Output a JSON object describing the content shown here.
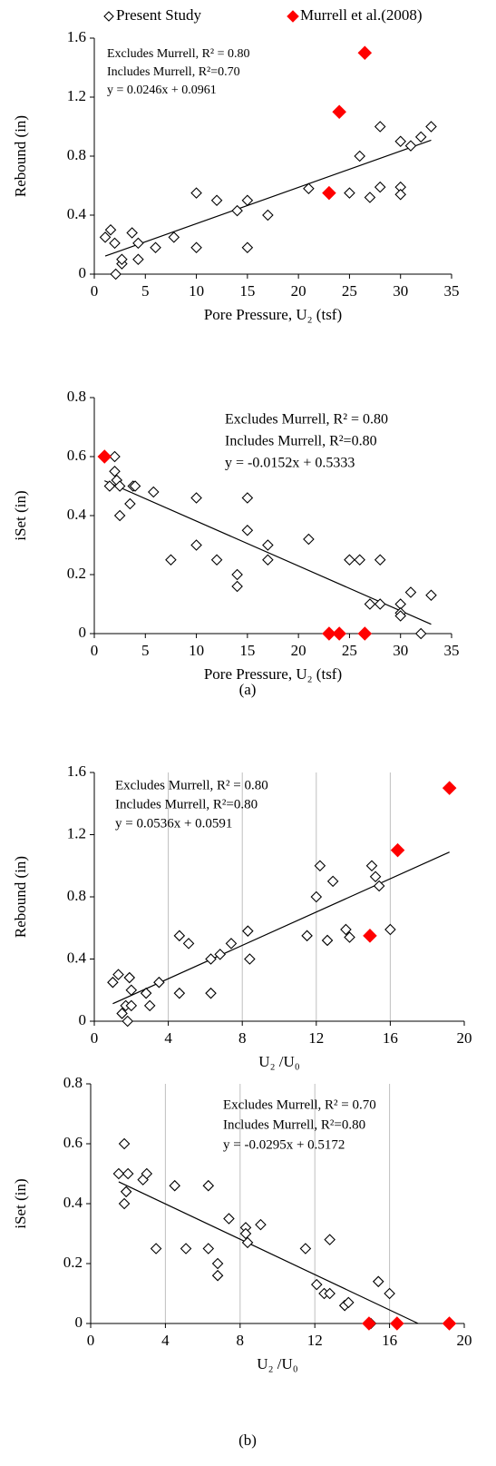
{
  "chart_data": [
    {
      "type": "scatter",
      "ylabel": "Rebound (in)",
      "xlabel": "Pore Pressure, U₂ (tsf)",
      "xlim": [
        0,
        35
      ],
      "xticks": [
        0,
        5,
        10,
        15,
        20,
        25,
        30,
        35
      ],
      "ylim": [
        0,
        1.6
      ],
      "yticks": [
        0,
        0.4,
        0.8,
        1.2,
        1.6
      ],
      "grid": false,
      "annotations": [
        "Excludes Murrell, R² = 0.80",
        "Includes Murrell, R²=0.70",
        "y = 0.0246x + 0.0961"
      ],
      "trendline": {
        "slope": 0.0246,
        "intercept": 0.0961
      },
      "series": [
        {
          "name": "Present Study",
          "color": "#000000",
          "filled": false,
          "x": [
            1.07,
            1.6,
            2,
            2.1,
            2.7,
            2.7,
            3.7,
            4.3,
            4.3,
            6,
            7.8,
            10,
            10,
            12,
            14,
            15,
            15,
            17,
            21,
            25,
            26,
            27,
            28,
            28,
            30,
            30,
            30,
            31,
            32,
            33
          ],
          "values": [
            0.25,
            0.3,
            0.21,
            0,
            0.07,
            0.1,
            0.28,
            0.21,
            0.1,
            0.18,
            0.25,
            0.55,
            0.18,
            0.5,
            0.43,
            0.5,
            0.18,
            0.4,
            0.58,
            0.55,
            0.8,
            0.52,
            1,
            0.59,
            0.9,
            0.59,
            0.54,
            0.87,
            0.93,
            1
          ]
        },
        {
          "name": "Murrell et al.(2008)",
          "color": "#ff0000",
          "filled": true,
          "x": [
            23,
            24,
            26.5
          ],
          "values": [
            0.55,
            1.1,
            1.5
          ]
        }
      ]
    },
    {
      "type": "scatter",
      "ylabel": "iSet (in)",
      "xlabel": "Pore Pressure, U₂ (tsf)",
      "xlim": [
        0,
        35
      ],
      "xticks": [
        0,
        5,
        10,
        15,
        20,
        25,
        30,
        35
      ],
      "ylim": [
        0,
        0.8
      ],
      "yticks": [
        0,
        0.2,
        0.4,
        0.6,
        0.8
      ],
      "grid": false,
      "annotations": [
        "Excludes Murrell, R² = 0.80",
        "Includes Murrell, R²=0.80",
        "y = -0.0152x + 0.5333"
      ],
      "trendline": {
        "slope": -0.0152,
        "intercept": 0.5333
      },
      "series": [
        {
          "color": "#000000",
          "filled": false,
          "x": [
            1.5,
            2,
            2,
            2.2,
            2.5,
            2.5,
            3.5,
            3.8,
            4,
            5.8,
            7.5,
            10,
            10,
            12,
            14,
            14,
            15,
            15,
            17,
            17,
            21,
            25,
            26,
            27,
            28,
            28,
            30,
            30,
            30,
            31,
            32,
            33
          ],
          "values": [
            0.5,
            0.6,
            0.55,
            0.52,
            0.5,
            0.4,
            0.44,
            0.5,
            0.5,
            0.48,
            0.25,
            0.46,
            0.3,
            0.25,
            0.2,
            0.16,
            0.46,
            0.35,
            0.3,
            0.25,
            0.32,
            0.25,
            0.25,
            0.1,
            0.25,
            0.1,
            0.1,
            0.07,
            0.06,
            0.14,
            0,
            0.13
          ]
        },
        {
          "color": "#ff0000",
          "filled": true,
          "x": [
            1,
            23,
            24,
            26.5
          ],
          "values": [
            0.6,
            0,
            0,
            0
          ]
        }
      ]
    },
    {
      "type": "scatter",
      "ylabel": "Rebound (in)",
      "xlabel": "U₂ /U₀",
      "xlim": [
        0,
        20
      ],
      "xticks": [
        0,
        4,
        8,
        12,
        16,
        20
      ],
      "ylim": [
        0,
        1.6
      ],
      "yticks": [
        0,
        0.4,
        0.8,
        1.2,
        1.6
      ],
      "grid": true,
      "annotations": [
        "Excludes Murrell, R² = 0.80",
        "Includes Murrell, R²=0.80",
        "y = 0.0536x + 0.0591"
      ],
      "trendline": {
        "slope": 0.0536,
        "intercept": 0.0591
      },
      "series": [
        {
          "color": "#000000",
          "filled": false,
          "x": [
            1,
            1.3,
            1.5,
            1.7,
            1.8,
            1.9,
            2,
            2,
            2.8,
            3,
            3.5,
            4.6,
            4.6,
            5.1,
            6.3,
            6.3,
            6.8,
            7.4,
            8.3,
            8.4,
            11.5,
            12,
            12.2,
            12.6,
            12.9,
            13.6,
            13.8,
            15,
            15.2,
            15.4,
            16
          ],
          "values": [
            0.25,
            0.3,
            0.05,
            0.1,
            0,
            0.28,
            0.1,
            0.2,
            0.18,
            0.1,
            0.25,
            0.18,
            0.55,
            0.5,
            0.18,
            0.4,
            0.43,
            0.5,
            0.58,
            0.4,
            0.55,
            0.8,
            1,
            0.52,
            0.9,
            0.59,
            0.54,
            1,
            0.93,
            0.87,
            0.59
          ]
        },
        {
          "color": "#ff0000",
          "filled": true,
          "x": [
            14.9,
            16.4,
            19.2
          ],
          "values": [
            0.55,
            1.1,
            1.5
          ]
        }
      ]
    },
    {
      "type": "scatter",
      "ylabel": "iSet (in)",
      "xlabel": "U₂ /U₀",
      "xlim": [
        0,
        20
      ],
      "xticks": [
        0,
        4,
        8,
        12,
        16,
        20
      ],
      "ylim": [
        0,
        0.8
      ],
      "yticks": [
        0,
        0.2,
        0.4,
        0.6,
        0.8
      ],
      "grid": true,
      "annotations": [
        "Excludes Murrell, R² = 0.70",
        "Includes Murrell, R²=0.80",
        "y = -0.0295x + 0.5172"
      ],
      "trendline": {
        "slope": -0.0295,
        "intercept": 0.5172
      },
      "series": [
        {
          "color": "#000000",
          "filled": false,
          "x": [
            1.5,
            1.8,
            1.8,
            1.9,
            2,
            2.8,
            3,
            3.5,
            4.5,
            5.1,
            6.3,
            6.3,
            6.8,
            6.8,
            7.4,
            8.3,
            8.3,
            8.4,
            9.1,
            11.5,
            12.1,
            12.5,
            12.8,
            12.8,
            13.6,
            13.8,
            15,
            15.4,
            16
          ],
          "values": [
            0.5,
            0.6,
            0.4,
            0.44,
            0.5,
            0.48,
            0.5,
            0.25,
            0.46,
            0.25,
            0.46,
            0.25,
            0.2,
            0.16,
            0.35,
            0.32,
            0.3,
            0.27,
            0.33,
            0.25,
            0.13,
            0.1,
            0.1,
            0.28,
            0.06,
            0.07,
            0,
            0.14,
            0.1
          ]
        },
        {
          "color": "#ff0000",
          "filled": true,
          "x": [
            14.9,
            16.4,
            19.2
          ],
          "values": [
            0,
            0,
            0
          ]
        }
      ]
    }
  ],
  "captions": [
    "(a)",
    "(b)"
  ]
}
